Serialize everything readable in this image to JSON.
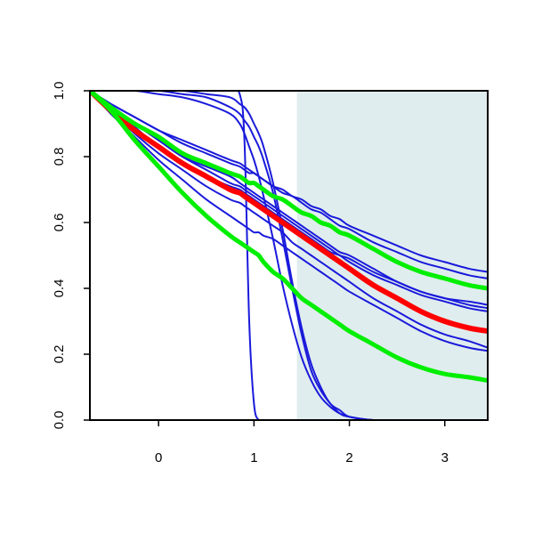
{
  "chart_data": {
    "type": "line",
    "title": "",
    "xlabel": "",
    "ylabel": "",
    "xlim": [
      -0.72,
      3.45
    ],
    "ylim": [
      0.0,
      1.0
    ],
    "x_ticks": [
      0,
      1,
      2,
      3
    ],
    "x_tick_labels": [
      "0",
      "1",
      "2",
      "3"
    ],
    "y_ticks": [
      0.0,
      0.2,
      0.4,
      0.6,
      0.8,
      1.0
    ],
    "y_tick_labels": [
      "0.0",
      "0.2",
      "0.4",
      "0.6",
      "0.8",
      "1.0"
    ],
    "grid": false,
    "legend": "none",
    "shaded_region": {
      "x_from": 1.45,
      "x_to": 3.45,
      "color": "#e0edee"
    },
    "colors": {
      "blue": "#1a1adb",
      "red": "#ff0000",
      "green": "#00ee00",
      "axis": "#000000"
    },
    "x": [
      -0.72,
      -0.5,
      -0.25,
      0.0,
      0.25,
      0.5,
      0.75,
      0.85,
      0.9,
      0.95,
      1.0,
      1.05,
      1.1,
      1.2,
      1.3,
      1.4,
      1.5,
      1.6,
      1.7,
      1.8,
      1.9,
      2.0,
      2.25,
      2.5,
      2.75,
      3.0,
      3.25,
      3.45
    ],
    "series": [
      {
        "color": "blue",
        "width": 2,
        "values": [
          1.0,
          1.0,
          1.0,
          1.0,
          1.0,
          1.0,
          1.0,
          0.99,
          0.85,
          0.3,
          0.05,
          0.0,
          0.0,
          0.0,
          0.0,
          0.0,
          0.0,
          0.0,
          0.0,
          0.0,
          0.0,
          0.0,
          0.0,
          0.0,
          0.0,
          0.0,
          0.0,
          0.0
        ]
      },
      {
        "color": "blue",
        "width": 2,
        "values": [
          1.0,
          1.0,
          1.0,
          1.0,
          1.0,
          0.99,
          0.98,
          0.96,
          0.95,
          0.93,
          0.9,
          0.87,
          0.83,
          0.72,
          0.58,
          0.42,
          0.28,
          0.17,
          0.1,
          0.05,
          0.03,
          0.01,
          0.0,
          0.0,
          0.0,
          0.0,
          0.0,
          0.0
        ]
      },
      {
        "color": "blue",
        "width": 2,
        "values": [
          1.0,
          1.0,
          1.0,
          1.0,
          0.99,
          0.98,
          0.95,
          0.93,
          0.91,
          0.89,
          0.86,
          0.83,
          0.79,
          0.69,
          0.55,
          0.4,
          0.26,
          0.15,
          0.09,
          0.05,
          0.02,
          0.01,
          0.0,
          0.0,
          0.0,
          0.0,
          0.0,
          0.0
        ]
      },
      {
        "color": "blue",
        "width": 2,
        "values": [
          1.0,
          1.0,
          1.0,
          0.99,
          0.98,
          0.96,
          0.93,
          0.9,
          0.87,
          0.83,
          0.79,
          0.74,
          0.68,
          0.55,
          0.41,
          0.29,
          0.19,
          0.12,
          0.07,
          0.04,
          0.02,
          0.01,
          0.0,
          0.0,
          0.0,
          0.0,
          0.0,
          0.0
        ]
      },
      {
        "color": "blue",
        "width": 2,
        "values": [
          1.0,
          0.96,
          0.92,
          0.88,
          0.84,
          0.81,
          0.78,
          0.77,
          0.76,
          0.75,
          0.75,
          0.74,
          0.73,
          0.71,
          0.7,
          0.68,
          0.67,
          0.65,
          0.64,
          0.62,
          0.61,
          0.59,
          0.56,
          0.53,
          0.5,
          0.48,
          0.46,
          0.45
        ]
      },
      {
        "color": "blue",
        "width": 2,
        "values": [
          1.0,
          0.96,
          0.92,
          0.88,
          0.85,
          0.82,
          0.79,
          0.78,
          0.77,
          0.76,
          0.75,
          0.74,
          0.73,
          0.71,
          0.69,
          0.68,
          0.66,
          0.64,
          0.63,
          0.61,
          0.59,
          0.58,
          0.54,
          0.51,
          0.48,
          0.46,
          0.44,
          0.43
        ]
      },
      {
        "color": "blue",
        "width": 2,
        "values": [
          1.0,
          0.95,
          0.89,
          0.83,
          0.78,
          0.74,
          0.71,
          0.7,
          0.69,
          0.68,
          0.67,
          0.66,
          0.65,
          0.63,
          0.61,
          0.59,
          0.57,
          0.55,
          0.53,
          0.51,
          0.5,
          0.48,
          0.44,
          0.41,
          0.38,
          0.36,
          0.34,
          0.33
        ]
      },
      {
        "color": "blue",
        "width": 2,
        "values": [
          1.0,
          0.95,
          0.9,
          0.85,
          0.8,
          0.77,
          0.74,
          0.72,
          0.71,
          0.7,
          0.69,
          0.68,
          0.67,
          0.65,
          0.63,
          0.61,
          0.59,
          0.57,
          0.55,
          0.53,
          0.51,
          0.5,
          0.46,
          0.42,
          0.39,
          0.37,
          0.35,
          0.34
        ]
      },
      {
        "color": "blue",
        "width": 2,
        "values": [
          1.0,
          0.95,
          0.9,
          0.85,
          0.8,
          0.76,
          0.72,
          0.71,
          0.7,
          0.69,
          0.68,
          0.67,
          0.66,
          0.64,
          0.62,
          0.6,
          0.58,
          0.56,
          0.54,
          0.52,
          0.5,
          0.49,
          0.45,
          0.42,
          0.39,
          0.37,
          0.36,
          0.35
        ]
      },
      {
        "color": "blue",
        "width": 2,
        "values": [
          1.0,
          0.94,
          0.87,
          0.81,
          0.76,
          0.71,
          0.67,
          0.66,
          0.65,
          0.64,
          0.63,
          0.62,
          0.61,
          0.59,
          0.57,
          0.54,
          0.52,
          0.5,
          0.48,
          0.46,
          0.44,
          0.42,
          0.37,
          0.33,
          0.29,
          0.26,
          0.24,
          0.22
        ]
      },
      {
        "color": "blue",
        "width": 2,
        "values": [
          1.0,
          0.93,
          0.86,
          0.79,
          0.73,
          0.67,
          0.62,
          0.6,
          0.59,
          0.58,
          0.57,
          0.57,
          0.56,
          0.55,
          0.53,
          0.51,
          0.49,
          0.47,
          0.45,
          0.43,
          0.41,
          0.39,
          0.35,
          0.31,
          0.27,
          0.24,
          0.22,
          0.21
        ]
      },
      {
        "color": "red",
        "width": 6,
        "values": [
          1.0,
          0.94,
          0.88,
          0.83,
          0.78,
          0.74,
          0.7,
          0.69,
          0.68,
          0.67,
          0.66,
          0.65,
          0.64,
          0.62,
          0.6,
          0.58,
          0.56,
          0.54,
          0.52,
          0.5,
          0.48,
          0.46,
          0.41,
          0.37,
          0.33,
          0.3,
          0.28,
          0.27
        ]
      },
      {
        "color": "green",
        "width": 5,
        "values": [
          1.0,
          0.95,
          0.9,
          0.86,
          0.81,
          0.78,
          0.75,
          0.74,
          0.73,
          0.72,
          0.72,
          0.71,
          0.7,
          0.68,
          0.67,
          0.65,
          0.63,
          0.62,
          0.6,
          0.59,
          0.57,
          0.56,
          0.52,
          0.48,
          0.45,
          0.43,
          0.41,
          0.4
        ]
      },
      {
        "color": "green",
        "width": 5,
        "values": [
          1.0,
          0.94,
          0.85,
          0.77,
          0.69,
          0.62,
          0.56,
          0.54,
          0.53,
          0.52,
          0.51,
          0.5,
          0.48,
          0.45,
          0.43,
          0.4,
          0.37,
          0.35,
          0.33,
          0.31,
          0.29,
          0.27,
          0.23,
          0.19,
          0.16,
          0.14,
          0.13,
          0.12
        ]
      }
    ]
  }
}
